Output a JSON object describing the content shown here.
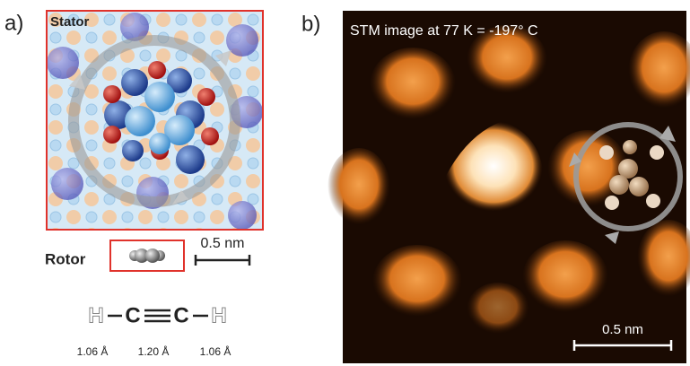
{
  "panel_a": {
    "label": "a)",
    "stator_label": "Stator",
    "rotor_label": "Rotor",
    "scale_label": "0.5 nm",
    "formula": {
      "atoms": [
        "H",
        "C",
        "C",
        "H"
      ]
    },
    "bond_lengths": [
      "1.06 Å",
      "1.20 Å",
      "1.06 Å"
    ]
  },
  "panel_b": {
    "label": "b)",
    "caption": "STM image at 77 K = -197° C",
    "scale_label": "0.5 nm"
  }
}
